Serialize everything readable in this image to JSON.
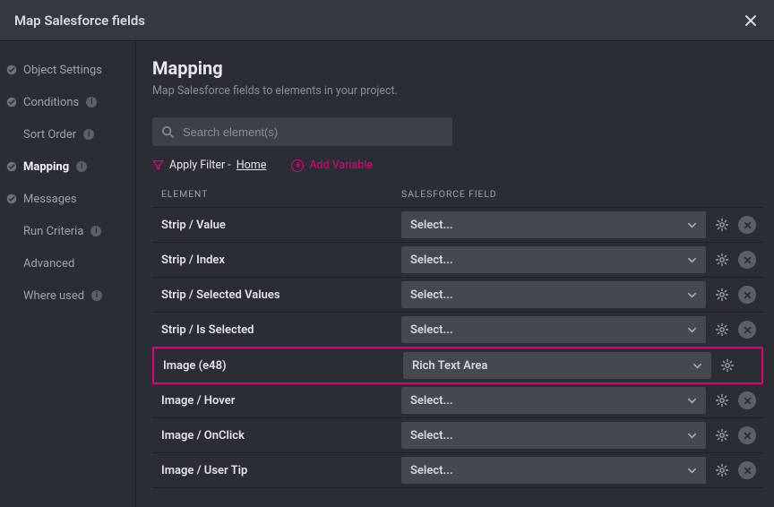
{
  "title": "Map Salesforce fields",
  "sidebar": [
    {
      "label": "Object Settings",
      "check": true,
      "info": false,
      "indent": false,
      "active": false
    },
    {
      "label": "Conditions",
      "check": true,
      "info": true,
      "indent": false,
      "active": false
    },
    {
      "label": "Sort Order",
      "check": false,
      "info": true,
      "indent": true,
      "active": false
    },
    {
      "label": "Mapping",
      "check": true,
      "info": true,
      "indent": false,
      "active": true
    },
    {
      "label": "Messages",
      "check": true,
      "info": false,
      "indent": false,
      "active": false
    },
    {
      "label": "Run Criteria",
      "check": false,
      "info": true,
      "indent": true,
      "active": false
    },
    {
      "label": "Advanced",
      "check": false,
      "info": false,
      "indent": true,
      "active": false
    },
    {
      "label": "Where used",
      "check": false,
      "info": true,
      "indent": true,
      "active": false
    }
  ],
  "heading": "Mapping",
  "subheading": "Map Salesforce fields to elements in your project.",
  "search_placeholder": "Search element(s)",
  "apply_filter_label": "Apply Filter -",
  "apply_filter_home": "Home",
  "add_variable_label": "Add Variable",
  "col_element": "ELEMENT",
  "col_sf": "SALESFORCE FIELD",
  "select_placeholder": "Select...",
  "rows": [
    {
      "element": "Strip / Value",
      "value": "Select...",
      "highlight": false,
      "removable": true
    },
    {
      "element": "Strip / Index",
      "value": "Select...",
      "highlight": false,
      "removable": true
    },
    {
      "element": "Strip / Selected Values",
      "value": "Select...",
      "highlight": false,
      "removable": true
    },
    {
      "element": "Strip / Is Selected",
      "value": "Select...",
      "highlight": false,
      "removable": true
    },
    {
      "element": "Image (e48)",
      "value": "Rich Text Area",
      "highlight": true,
      "removable": false
    },
    {
      "element": "Image / Hover",
      "value": "Select...",
      "highlight": false,
      "removable": true
    },
    {
      "element": "Image / OnClick",
      "value": "Select...",
      "highlight": false,
      "removable": true
    },
    {
      "element": "Image / User Tip",
      "value": "Select...",
      "highlight": false,
      "removable": true
    }
  ],
  "colors": {
    "accent": "#e6007e",
    "bg": "#2a2d33",
    "panel": "#34383f",
    "input": "#3c4047",
    "select": "#45494f",
    "border": "#1e2024",
    "text": "#c8cbd0",
    "text_muted": "#8b8f97"
  }
}
